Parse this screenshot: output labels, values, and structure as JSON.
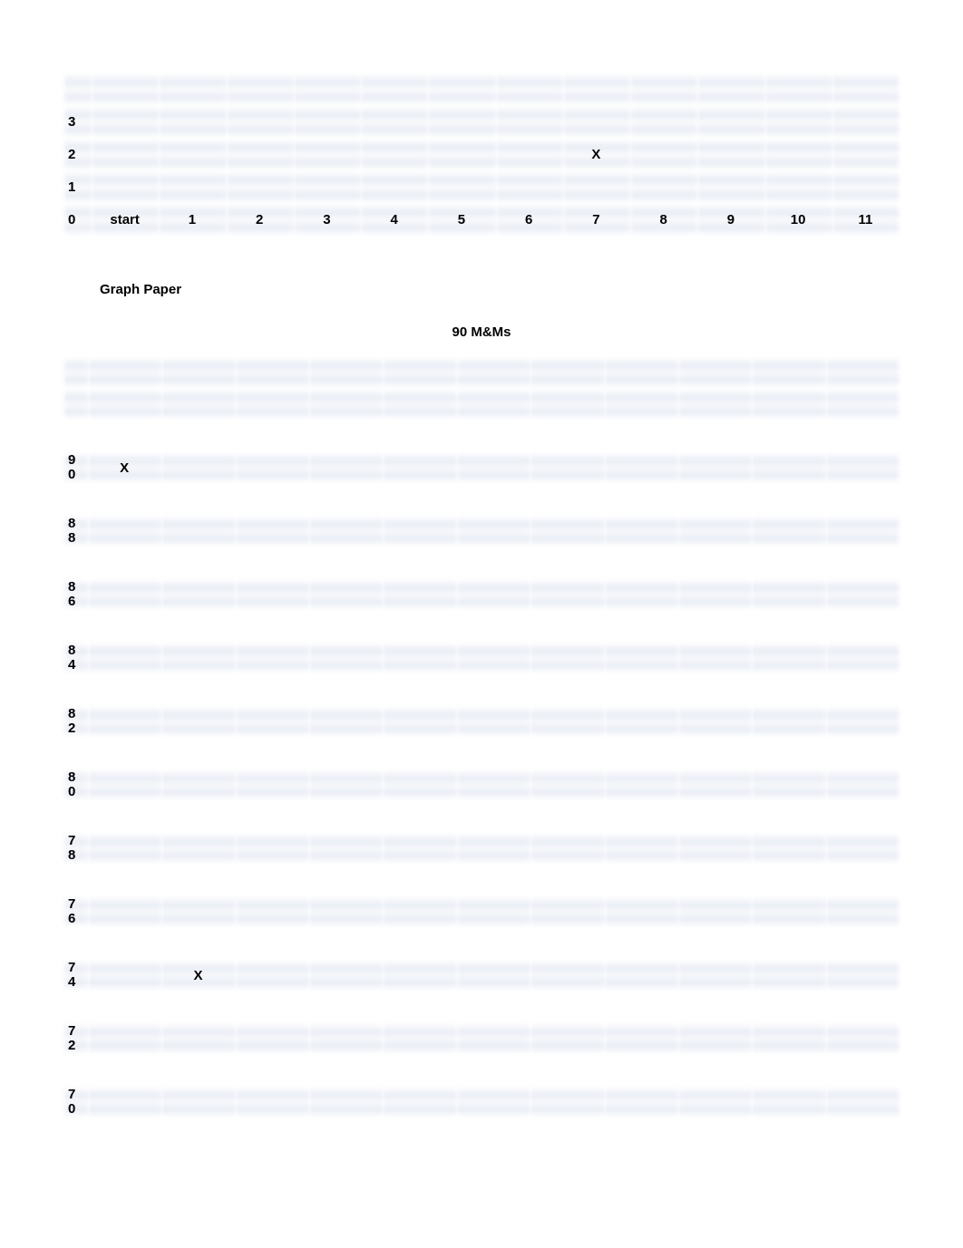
{
  "top_table": {
    "y_labels": [
      "3",
      "2",
      "1",
      "0"
    ],
    "x_labels": [
      "start",
      "1",
      "2",
      "3",
      "4",
      "5",
      "6",
      "7",
      "8",
      "9",
      "10",
      "11"
    ],
    "marks": [
      {
        "y": "2",
        "x": "7",
        "symbol": "X"
      }
    ],
    "grid_color": "#d4dbec",
    "text_color": "#000000",
    "background": "#ffffff"
  },
  "section_title": "Graph Paper",
  "chart_title": "90 M&Ms",
  "bottom_table": {
    "y_labels": [
      "",
      "",
      "90",
      "88",
      "86",
      "84",
      "82",
      "80",
      "78",
      "76",
      "74",
      "72",
      "70"
    ],
    "col_count": 11,
    "marks": [
      {
        "y": "90",
        "col": 1,
        "symbol": "X"
      },
      {
        "y": "74",
        "col": 2,
        "symbol": "X"
      }
    ],
    "grid_color": "#d4dbec",
    "text_color": "#000000",
    "background": "#ffffff"
  }
}
